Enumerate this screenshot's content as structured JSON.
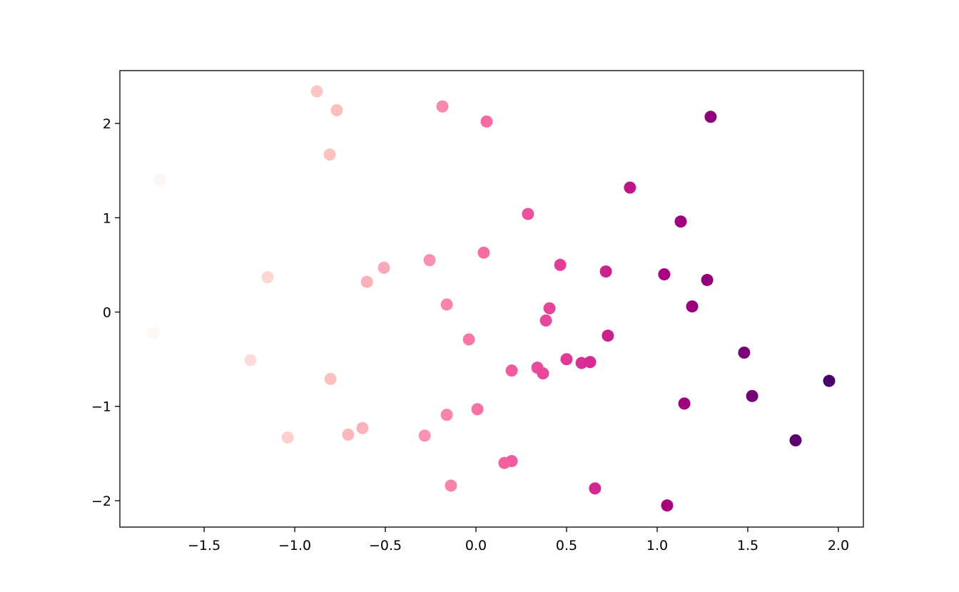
{
  "chart_data": {
    "type": "scatter",
    "x": [
      -0.878,
      -0.768,
      -0.185,
      0.059,
      1.295,
      -0.807,
      -1.744,
      0.85,
      0.287,
      1.13,
      0.043,
      -0.256,
      -0.508,
      0.465,
      0.717,
      1.039,
      1.276,
      -1.15,
      -0.602,
      -0.161,
      0.406,
      1.193,
      0.386,
      -1.78,
      -0.039,
      0.728,
      1.48,
      -1.244,
      0.5,
      0.583,
      0.63,
      0.339,
      0.37,
      0.197,
      -0.803,
      1.949,
      1.524,
      1.15,
      0.008,
      -0.161,
      -0.626,
      -0.705,
      -0.283,
      -1.039,
      1.764,
      0.197,
      0.157,
      -0.138,
      0.657,
      1.055
    ],
    "y": [
      2.34,
      2.14,
      2.18,
      2.02,
      2.07,
      1.67,
      1.4,
      1.32,
      1.04,
      0.96,
      0.63,
      0.55,
      0.47,
      0.5,
      0.43,
      0.4,
      0.34,
      0.37,
      0.32,
      0.08,
      0.04,
      0.06,
      -0.09,
      -0.22,
      -0.29,
      -0.25,
      -0.43,
      -0.51,
      -0.5,
      -0.54,
      -0.53,
      -0.59,
      -0.65,
      -0.62,
      -0.71,
      -0.73,
      -0.89,
      -0.97,
      -1.03,
      -1.09,
      -1.23,
      -1.3,
      -1.31,
      -1.33,
      -1.36,
      -1.58,
      -1.6,
      -1.84,
      -1.87,
      -2.05
    ],
    "color_by": "x",
    "colormap": [
      "#fff7f3",
      "#fde0dd",
      "#fcc5c0",
      "#fa9fb5",
      "#f768a1",
      "#dd3497",
      "#ae017e",
      "#7a0177",
      "#49006a"
    ],
    "xlim": [
      -1.965,
      2.138
    ],
    "ylim": [
      -2.28,
      2.56
    ],
    "xticks": [
      {
        "value": -1.5,
        "label": "−1.5"
      },
      {
        "value": -1.0,
        "label": "−1.0"
      },
      {
        "value": -0.5,
        "label": "−0.5"
      },
      {
        "value": 0,
        "label": "0.0"
      },
      0.5,
      {
        "value": 1,
        "label": "1.0"
      },
      1.5,
      {
        "value": 2,
        "label": "2.0"
      }
    ],
    "yticks": [
      {
        "value": -2,
        "label": "−2"
      },
      {
        "value": -1,
        "label": "−1"
      },
      0,
      1,
      2
    ],
    "grid": false
  }
}
